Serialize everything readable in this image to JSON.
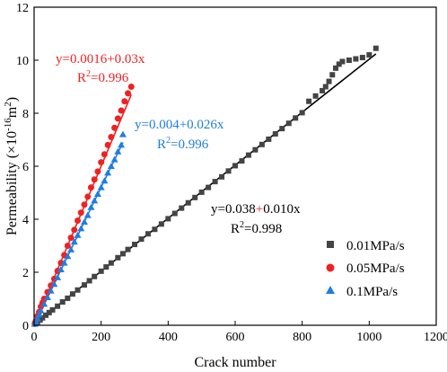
{
  "chart_data": {
    "type": "scatter",
    "xlabel": "Crack number",
    "ylabel_prefix": "Permeability (×10",
    "ylabel_exp": "-16",
    "ylabel_mid": "m",
    "ylabel_exp2": "2",
    "ylabel_suffix": ")",
    "xlim": [
      0,
      1200
    ],
    "ylim": [
      0,
      12
    ],
    "xticks": [
      "0",
      "200",
      "400",
      "600",
      "800",
      "1000",
      "1200"
    ],
    "yticks": [
      "0",
      "2",
      "4",
      "6",
      "8",
      "10",
      "12"
    ],
    "legend_position": "bottom-right",
    "series": [
      {
        "name": "0.01MPa/s",
        "marker": "square",
        "color": "#444444",
        "fit_color": "#000000",
        "intercept": 0.038,
        "slope": 0.01,
        "x_max": 1020,
        "x": [
          2,
          5,
          10,
          18,
          25,
          35,
          45,
          55,
          70,
          85,
          100,
          115,
          130,
          150,
          165,
          180,
          200,
          215,
          230,
          250,
          265,
          280,
          300,
          320,
          340,
          360,
          380,
          400,
          420,
          440,
          460,
          480,
          500,
          520,
          540,
          560,
          580,
          600,
          620,
          640,
          660,
          680,
          700,
          720,
          740,
          760,
          780,
          800,
          820,
          840,
          860,
          870,
          880,
          890,
          900,
          910,
          920,
          940,
          960,
          980,
          1000,
          1020
        ],
        "y": [
          0.05,
          0.08,
          0.12,
          0.2,
          0.28,
          0.38,
          0.48,
          0.58,
          0.72,
          0.88,
          1.02,
          1.18,
          1.33,
          1.52,
          1.68,
          1.84,
          2.04,
          2.2,
          2.35,
          2.55,
          2.7,
          2.86,
          3.05,
          3.25,
          3.45,
          3.62,
          3.82,
          4.02,
          4.22,
          4.42,
          4.62,
          4.82,
          5.02,
          5.2,
          5.42,
          5.6,
          5.82,
          6.02,
          6.2,
          6.42,
          6.62,
          6.82,
          7.02,
          7.22,
          7.42,
          7.62,
          7.82,
          8.02,
          8.45,
          8.65,
          8.85,
          9.0,
          9.2,
          9.45,
          9.7,
          9.85,
          9.95,
          10.0,
          10.05,
          10.1,
          10.2,
          10.45
        ]
      },
      {
        "name": "0.05MPa/s",
        "marker": "circle",
        "color": "#ee2222",
        "fit_color": "#ee2222",
        "intercept": 0.0016,
        "slope": 0.03,
        "x_max": 290,
        "x": [
          2,
          5,
          10,
          15,
          20,
          25,
          30,
          40,
          50,
          60,
          70,
          80,
          90,
          100,
          110,
          120,
          130,
          140,
          150,
          160,
          170,
          180,
          190,
          200,
          210,
          220,
          230,
          240,
          250,
          260,
          270,
          280,
          290
        ],
        "y": [
          0.05,
          0.15,
          0.35,
          0.5,
          0.7,
          0.85,
          1.0,
          1.25,
          1.5,
          1.75,
          2.05,
          2.35,
          2.65,
          3.0,
          3.3,
          3.6,
          3.95,
          4.25,
          4.55,
          4.85,
          5.2,
          5.5,
          5.8,
          6.15,
          6.45,
          6.8,
          7.1,
          7.45,
          7.8,
          8.1,
          8.45,
          8.75,
          9.0
        ]
      },
      {
        "name": "0.1MPa/s",
        "marker": "triangle",
        "color": "#1e7ee0",
        "fit_color": "#1e7ee0",
        "intercept": 0.004,
        "slope": 0.026,
        "x_max": 265,
        "x": [
          2,
          5,
          10,
          15,
          20,
          30,
          40,
          50,
          60,
          70,
          80,
          90,
          100,
          110,
          120,
          130,
          140,
          150,
          160,
          170,
          180,
          190,
          200,
          210,
          220,
          230,
          240,
          250,
          260,
          265
        ],
        "y": [
          0.05,
          0.12,
          0.25,
          0.4,
          0.55,
          0.8,
          1.05,
          1.3,
          1.55,
          1.8,
          2.1,
          2.35,
          2.6,
          2.85,
          3.15,
          3.4,
          3.65,
          3.9,
          4.15,
          4.45,
          4.7,
          4.95,
          5.2,
          5.45,
          5.75,
          6.0,
          6.25,
          6.55,
          6.8,
          7.2
        ]
      }
    ],
    "annotations": [
      {
        "line1": "y=0.0016+0.03x",
        "r2_val": "=0.996",
        "color": "#ee2222"
      },
      {
        "line1": "y=0.004+0.026x",
        "r2_val": "=0.996",
        "color": "#1e7ee0"
      },
      {
        "line1a": "y=0.038",
        "plus": "+",
        "line1b": "0.010x",
        "r2_val": "=0.998",
        "color": "#000000",
        "plus_color": "#ee2222"
      }
    ],
    "r2_label": "R",
    "r2_exp": "2"
  }
}
